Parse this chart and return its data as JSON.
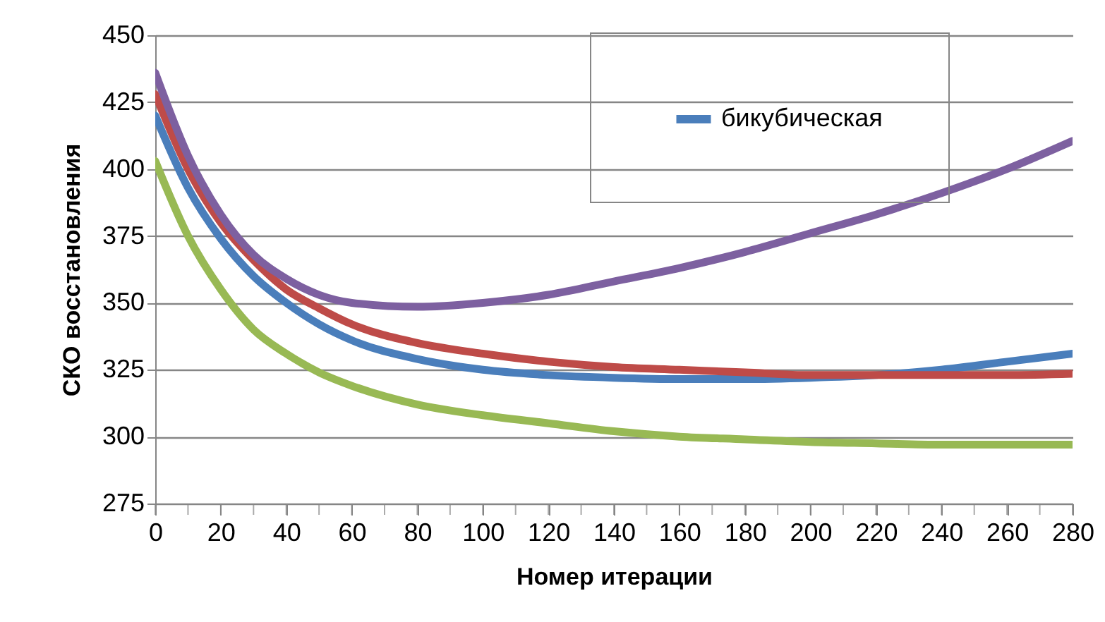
{
  "chart_data": {
    "type": "line",
    "xlabel": "Номер итерации",
    "ylabel": "СКО восстановления",
    "x": [
      0,
      10,
      20,
      30,
      40,
      50,
      60,
      80,
      100,
      120,
      140,
      160,
      180,
      200,
      220,
      240,
      260,
      280
    ],
    "series": [
      {
        "name": "бикубическая",
        "color": "#4a7ebb",
        "values": [
          420,
          393,
          374,
          360,
          350,
          342,
          336,
          329,
          325,
          323,
          322,
          321.5,
          321.5,
          322,
          323,
          325,
          328,
          331
        ]
      },
      {
        "color": "#be4b48",
        "values": [
          428,
          400,
          380,
          366,
          355,
          348,
          342,
          335,
          331,
          328,
          326,
          325,
          324,
          323,
          323,
          323,
          323,
          323.5
        ]
      },
      {
        "color": "#98b954",
        "values": [
          403,
          375,
          355,
          340,
          331,
          324,
          319,
          312,
          308,
          305,
          302,
          300,
          299,
          298,
          297.5,
          297,
          297,
          297
        ]
      },
      {
        "color": "#7d60a0",
        "values": [
          436,
          405,
          383,
          368,
          359,
          353,
          350,
          348.5,
          350,
          353,
          358,
          363,
          369,
          376,
          383,
          391,
          400,
          410.5
        ]
      }
    ],
    "xlim": [
      0,
      280
    ],
    "ylim": [
      275,
      450
    ],
    "xticks": [
      0,
      {
        "value": 10,
        "label": null
      },
      20,
      {
        "value": 30,
        "label": null
      },
      40,
      {
        "value": 50,
        "label": null
      },
      60,
      {
        "value": 70,
        "label": null
      },
      80,
      {
        "value": 90,
        "label": null
      },
      100,
      {
        "value": 110,
        "label": null
      },
      120,
      {
        "value": 130,
        "label": null
      },
      140,
      {
        "value": 150,
        "label": null
      },
      160,
      {
        "value": 170,
        "label": null
      },
      180,
      {
        "value": 190,
        "label": null
      },
      200,
      {
        "value": 210,
        "label": null
      },
      220,
      {
        "value": 230,
        "label": null
      },
      240,
      {
        "value": 250,
        "label": null
      },
      260,
      {
        "value": 270,
        "label": null
      },
      280
    ],
    "yticks": [
      275,
      300,
      325,
      350,
      375,
      400,
      425,
      450
    ],
    "grid": "y",
    "legend": "top right",
    "line_style": "solid"
  }
}
